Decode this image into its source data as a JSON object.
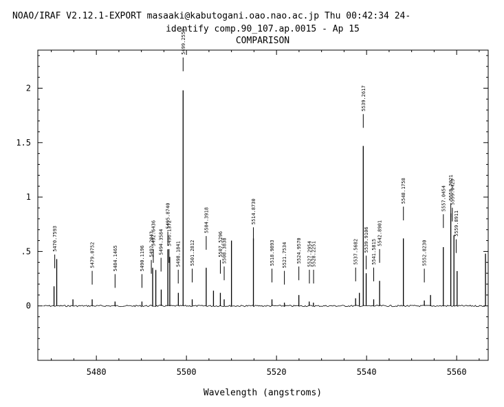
{
  "header": {
    "line1": "NOAO/IRAF V2.12.1-EXPORT masaaki@kabutogani.oao.nao.ac.jp Thu 00:42:34 24-",
    "line2": "identify comp.90_107.ap.0015 - Ap 15",
    "line3": "COMPARISON"
  },
  "chart_data": {
    "type": "line",
    "title": "identify comp.90_107.ap.0015 - Ap 15",
    "subtitle": "COMPARISON",
    "xlabel": "Wavelength (angstroms)",
    "ylabel": "",
    "xlim": [
      5467,
      5567
    ],
    "ylim": [
      -0.5,
      2.35
    ],
    "xticks": [
      5480,
      5500,
      5520,
      5540,
      5560
    ],
    "yticks": [
      {
        "value": 0,
        "label": "0"
      },
      {
        "value": 0.5,
        "label": ".5"
      },
      {
        "value": 1,
        "label": "1"
      },
      {
        "value": 1.5,
        "label": "1.5"
      },
      {
        "value": 2,
        "label": "2"
      }
    ],
    "grid": false,
    "series": [
      {
        "lines": [
          {
            "x": 5470.6,
            "y": 0.18
          },
          {
            "x": 5471.2,
            "y": 0.43
          },
          {
            "x": 5474.8,
            "y": 0.06
          },
          {
            "x": 5479.07,
            "y": 0.06
          },
          {
            "x": 5484.15,
            "y": 0.04
          },
          {
            "x": 5490.12,
            "y": 0.04
          },
          {
            "x": 5492.5,
            "y": 0.35
          },
          {
            "x": 5493.2,
            "y": 0.33
          },
          {
            "x": 5494.4,
            "y": 0.15
          },
          {
            "x": 5495.87,
            "y": 0.52
          },
          {
            "x": 5496.3,
            "y": 0.45
          },
          {
            "x": 5498.2,
            "y": 0.12
          },
          {
            "x": 5499.26,
            "y": 1.98
          },
          {
            "x": 5501.28,
            "y": 0.06
          },
          {
            "x": 5504.39,
            "y": 0.35
          },
          {
            "x": 5506.0,
            "y": 0.14
          },
          {
            "x": 5507.53,
            "y": 0.12
          },
          {
            "x": 5508.38,
            "y": 0.06
          },
          {
            "x": 5510.0,
            "y": 0.6
          },
          {
            "x": 5514.87,
            "y": 0.62
          },
          {
            "x": 5518.99,
            "y": 0.06
          },
          {
            "x": 5521.75,
            "y": 0.03
          },
          {
            "x": 5524.96,
            "y": 0.1
          },
          {
            "x": 5527.26,
            "y": 0.04
          },
          {
            "x": 5528.2,
            "y": 0.03
          },
          {
            "x": 5537.56,
            "y": 0.07
          },
          {
            "x": 5538.4,
            "y": 0.12
          },
          {
            "x": 5539.26,
            "y": 1.47
          },
          {
            "x": 5539.91,
            "y": 0.3
          },
          {
            "x": 5541.58,
            "y": 0.06
          },
          {
            "x": 5542.89,
            "y": 0.23
          },
          {
            "x": 5548.17,
            "y": 0.62
          },
          {
            "x": 5552.82,
            "y": 0.05
          },
          {
            "x": 5554.2,
            "y": 0.1
          },
          {
            "x": 5557.04,
            "y": 0.54
          },
          {
            "x": 5558.7,
            "y": 0.85
          },
          {
            "x": 5559.4,
            "y": 0.65
          },
          {
            "x": 5560.1,
            "y": 0.32
          },
          {
            "x": 5566.4,
            "y": 0.48
          }
        ]
      }
    ],
    "annotations": [
      {
        "label": "5470.7593",
        "x": 5470.76,
        "tip": 0.39
      },
      {
        "label": "5479.0752",
        "x": 5479.07,
        "tip": 0.24
      },
      {
        "label": "5484.1465",
        "x": 5484.15,
        "tip": 0.21
      },
      {
        "label": "5490.1196",
        "x": 5490.12,
        "tip": 0.21
      },
      {
        "label": "5492.2043",
        "x": 5492.2,
        "tip": 0.34
      },
      {
        "label": "5492.6436",
        "x": 5492.64,
        "tip": 0.44
      },
      {
        "label": "5494.3584",
        "x": 5494.36,
        "tip": 0.36
      },
      {
        "label": "5495.8740",
        "x": 5495.87,
        "tip": 0.6
      },
      {
        "label": "5496.1372",
        "x": 5496.14,
        "tip": 0.44
      },
      {
        "label": "5498.1841",
        "x": 5498.18,
        "tip": 0.25
      },
      {
        "label": "5499.2558",
        "x": 5499.26,
        "tip": 2.2
      },
      {
        "label": "5501.2812",
        "x": 5501.28,
        "tip": 0.26
      },
      {
        "label": "5504.3918",
        "x": 5504.39,
        "tip": 0.56
      },
      {
        "label": "5507.5296",
        "x": 5507.53,
        "tip": 0.34
      },
      {
        "label": "5508.3838",
        "x": 5508.38,
        "tip": 0.28
      },
      {
        "label": "5514.8730",
        "x": 5514.87,
        "tip": 0.64
      },
      {
        "label": "5518.9893",
        "x": 5518.99,
        "tip": 0.26
      },
      {
        "label": "5521.7534",
        "x": 5521.75,
        "tip": 0.24
      },
      {
        "label": "5524.9570",
        "x": 5524.96,
        "tip": 0.28
      },
      {
        "label": "5527.2954",
        "x": 5527.3,
        "tip": 0.25
      },
      {
        "label": "5528.2251",
        "x": 5528.23,
        "tip": 0.25
      },
      {
        "label": "5537.5682",
        "x": 5537.57,
        "tip": 0.27
      },
      {
        "label": "5539.2617",
        "x": 5539.26,
        "tip": 1.68
      },
      {
        "label": "5539.9106",
        "x": 5539.91,
        "tip": 0.38
      },
      {
        "label": "5541.5815",
        "x": 5541.58,
        "tip": 0.27
      },
      {
        "label": "5542.8901",
        "x": 5542.89,
        "tip": 0.44
      },
      {
        "label": "5548.1758",
        "x": 5548.18,
        "tip": 0.83
      },
      {
        "label": "5552.8230",
        "x": 5552.82,
        "tip": 0.26
      },
      {
        "label": "5557.0454",
        "x": 5557.05,
        "tip": 0.76
      },
      {
        "label": "5558.7021",
        "x": 5558.7,
        "tip": 0.86
      },
      {
        "label": "5559.0423",
        "x": 5559.04,
        "tip": 0.82
      },
      {
        "label": "5559.8911",
        "x": 5559.89,
        "tip": 0.53
      }
    ]
  }
}
